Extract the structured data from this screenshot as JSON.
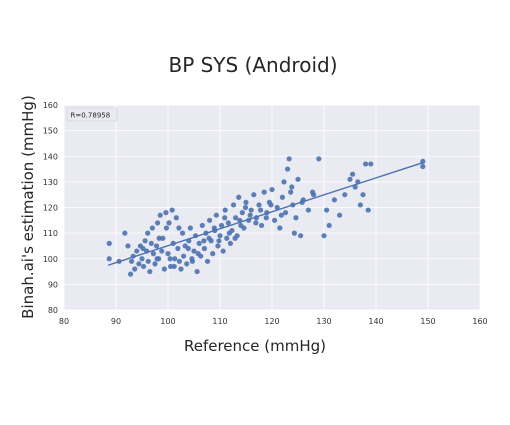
{
  "chart_data": {
    "type": "scatter",
    "title": "BP SYS (Android)",
    "xlabel": "Reference (mmHg)",
    "ylabel": "Binah.ai's estimation (mmHg)",
    "xlim": [
      80,
      160
    ],
    "ylim": [
      80,
      160
    ],
    "xticks": [
      80,
      90,
      100,
      110,
      120,
      130,
      140,
      150,
      160
    ],
    "yticks": [
      80,
      90,
      100,
      110,
      120,
      130,
      140,
      150,
      160
    ],
    "grid": true,
    "legend": "none",
    "annotation": "R=0.78958",
    "colors": {
      "point": "#4c72b0",
      "line": "#4c72b0",
      "background": "#eaeaf2",
      "grid": "#ffffff"
    },
    "regression_line": {
      "x": [
        88.5,
        149
      ],
      "y": [
        97.5,
        137.5
      ]
    },
    "points": [
      [
        88.7,
        106
      ],
      [
        88.7,
        100
      ],
      [
        90.6,
        99
      ],
      [
        91.7,
        110
      ],
      [
        92.3,
        105
      ],
      [
        92.8,
        94
      ],
      [
        93.0,
        99
      ],
      [
        93.3,
        101
      ],
      [
        93.6,
        96
      ],
      [
        94.0,
        103
      ],
      [
        94.4,
        98
      ],
      [
        94.7,
        105
      ],
      [
        95.0,
        100
      ],
      [
        95.3,
        97
      ],
      [
        95.6,
        107
      ],
      [
        95.9,
        103
      ],
      [
        96.2,
        99
      ],
      [
        96.5,
        95
      ],
      [
        96.8,
        106
      ],
      [
        97.0,
        112
      ],
      [
        97.2,
        102
      ],
      [
        97.5,
        98
      ],
      [
        97.8,
        105
      ],
      [
        98.0,
        114
      ],
      [
        98.2,
        100
      ],
      [
        98.5,
        117
      ],
      [
        98.8,
        103
      ],
      [
        99.0,
        108
      ],
      [
        99.3,
        96
      ],
      [
        99.6,
        118
      ],
      [
        100.0,
        102
      ],
      [
        100.2,
        114
      ],
      [
        100.5,
        97
      ],
      [
        100.8,
        119
      ],
      [
        101.0,
        106
      ],
      [
        101.3,
        100
      ],
      [
        101.6,
        116
      ],
      [
        101.9,
        104
      ],
      [
        102.2,
        99
      ],
      [
        102.5,
        96
      ],
      [
        102.8,
        110
      ],
      [
        103.0,
        101
      ],
      [
        103.3,
        105
      ],
      [
        103.6,
        98
      ],
      [
        104.0,
        107
      ],
      [
        104.3,
        112
      ],
      [
        104.6,
        100
      ],
      [
        105.0,
        103
      ],
      [
        105.3,
        109
      ],
      [
        105.6,
        95
      ],
      [
        106.0,
        106
      ],
      [
        106.3,
        101
      ],
      [
        106.6,
        113
      ],
      [
        107.0,
        104
      ],
      [
        107.3,
        110
      ],
      [
        107.6,
        99
      ],
      [
        108.0,
        115
      ],
      [
        108.3,
        107
      ],
      [
        108.6,
        102
      ],
      [
        109.0,
        111
      ],
      [
        109.3,
        117
      ],
      [
        109.6,
        105
      ],
      [
        110.0,
        109
      ],
      [
        110.3,
        113
      ],
      [
        110.6,
        103
      ],
      [
        111.0,
        119
      ],
      [
        111.3,
        108
      ],
      [
        111.6,
        114
      ],
      [
        112.0,
        106
      ],
      [
        112.3,
        111
      ],
      [
        112.6,
        121
      ],
      [
        113.0,
        116
      ],
      [
        113.3,
        109
      ],
      [
        113.6,
        124
      ],
      [
        114.0,
        113
      ],
      [
        114.3,
        118
      ],
      [
        114.6,
        112
      ],
      [
        115.0,
        122
      ],
      [
        115.5,
        115
      ],
      [
        116.0,
        119
      ],
      [
        116.5,
        125
      ],
      [
        117.0,
        116
      ],
      [
        117.5,
        121
      ],
      [
        118.0,
        113
      ],
      [
        118.5,
        126
      ],
      [
        119.0,
        118
      ],
      [
        119.5,
        122
      ],
      [
        120.0,
        127
      ],
      [
        120.5,
        115
      ],
      [
        121.0,
        120
      ],
      [
        121.5,
        112
      ],
      [
        122.0,
        124
      ],
      [
        122.3,
        130
      ],
      [
        122.6,
        118
      ],
      [
        123.0,
        135
      ],
      [
        123.3,
        139
      ],
      [
        123.6,
        126
      ],
      [
        124.0,
        121
      ],
      [
        124.3,
        110
      ],
      [
        124.6,
        116
      ],
      [
        125.0,
        131
      ],
      [
        125.5,
        109
      ],
      [
        126.0,
        123
      ],
      [
        127.0,
        119
      ],
      [
        128.0,
        125
      ],
      [
        129.0,
        139
      ],
      [
        130.0,
        109
      ],
      [
        130.5,
        119
      ],
      [
        131.0,
        113
      ],
      [
        132.0,
        123
      ],
      [
        133.0,
        117
      ],
      [
        134.0,
        125
      ],
      [
        135.0,
        131
      ],
      [
        135.5,
        133
      ],
      [
        136.0,
        128
      ],
      [
        136.5,
        130
      ],
      [
        137.0,
        121
      ],
      [
        137.5,
        125
      ],
      [
        138.0,
        137
      ],
      [
        138.5,
        119
      ],
      [
        139.0,
        137
      ],
      [
        149.0,
        138
      ],
      [
        149.0,
        136
      ],
      [
        95.2,
        104
      ],
      [
        97.9,
        100
      ],
      [
        99.7,
        112
      ],
      [
        101.2,
        97
      ],
      [
        103.9,
        104
      ],
      [
        105.8,
        102
      ],
      [
        107.9,
        108
      ],
      [
        109.8,
        107
      ],
      [
        111.8,
        110
      ],
      [
        113.8,
        115
      ],
      [
        115.8,
        117
      ],
      [
        117.8,
        119
      ],
      [
        119.8,
        121
      ],
      [
        121.8,
        117
      ],
      [
        123.8,
        128
      ],
      [
        125.8,
        122
      ],
      [
        127.8,
        126
      ],
      [
        96.1,
        110
      ],
      [
        98.3,
        108
      ],
      [
        100.4,
        100
      ],
      [
        102.1,
        112
      ],
      [
        104.7,
        99
      ],
      [
        106.9,
        107
      ],
      [
        108.9,
        112
      ],
      [
        110.9,
        116
      ],
      [
        112.9,
        108
      ],
      [
        114.9,
        120
      ],
      [
        116.9,
        114
      ],
      [
        118.9,
        116
      ]
    ]
  }
}
